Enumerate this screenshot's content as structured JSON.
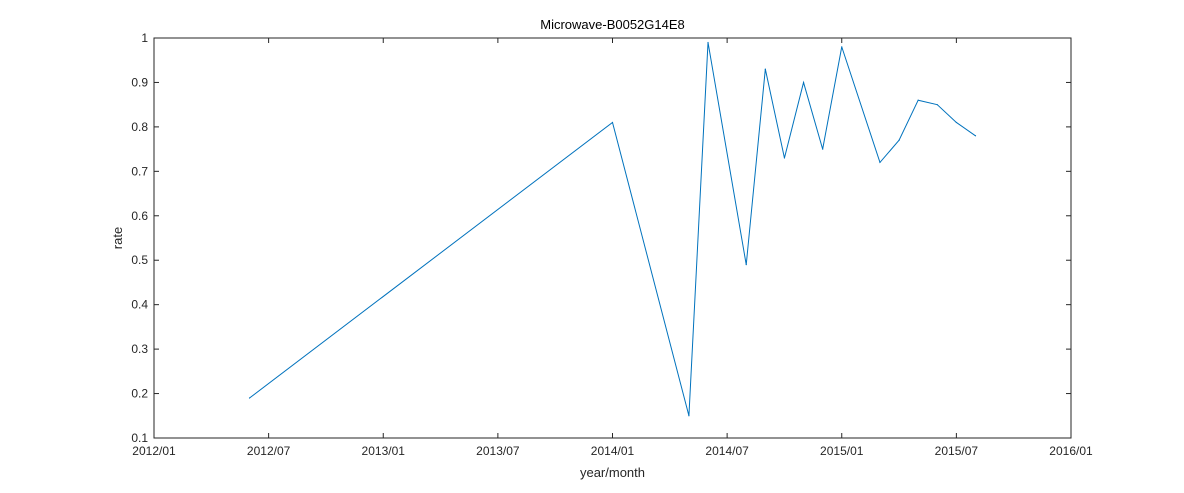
{
  "chart_data": {
    "type": "line",
    "title": "Microwave-B0052G14E8",
    "xlabel": "year/month",
    "ylabel": "rate",
    "x_tick_labels": [
      "2012/01",
      "2012/07",
      "2013/01",
      "2013/07",
      "2014/01",
      "2014/07",
      "2015/01",
      "2015/07",
      "2016/01"
    ],
    "x_ticks": [
      "2012-01",
      "2012-07",
      "2013-01",
      "2013-07",
      "2014-01",
      "2014-07",
      "2015-01",
      "2015-07",
      "2016-01"
    ],
    "xlim": [
      "2012-01",
      "2016-01"
    ],
    "ylim": [
      0.1,
      1
    ],
    "y_ticks": [
      0.1,
      0.2,
      0.3,
      0.4,
      0.5,
      0.6,
      0.7,
      0.8,
      0.9,
      1
    ],
    "y_tick_labels": [
      "0.1",
      "0.2",
      "0.3",
      "0.4",
      "0.5",
      "0.6",
      "0.7",
      "0.8",
      "0.9",
      "1"
    ],
    "grid": false,
    "line_color": "#0072bd",
    "series": [
      {
        "x": [
          "2012-06",
          "2014-01",
          "2014-05",
          "2014-06",
          "2014-08",
          "2014-09",
          "2014-10",
          "2014-11",
          "2014-12",
          "2015-01",
          "2015-03",
          "2015-04",
          "2015-05",
          "2015-06",
          "2015-07",
          "2015-08"
        ],
        "values": [
          0.19,
          0.81,
          0.15,
          0.99,
          0.49,
          0.93,
          0.73,
          0.9,
          0.75,
          0.98,
          0.72,
          0.77,
          0.86,
          0.85,
          0.81,
          0.78
        ]
      }
    ]
  }
}
